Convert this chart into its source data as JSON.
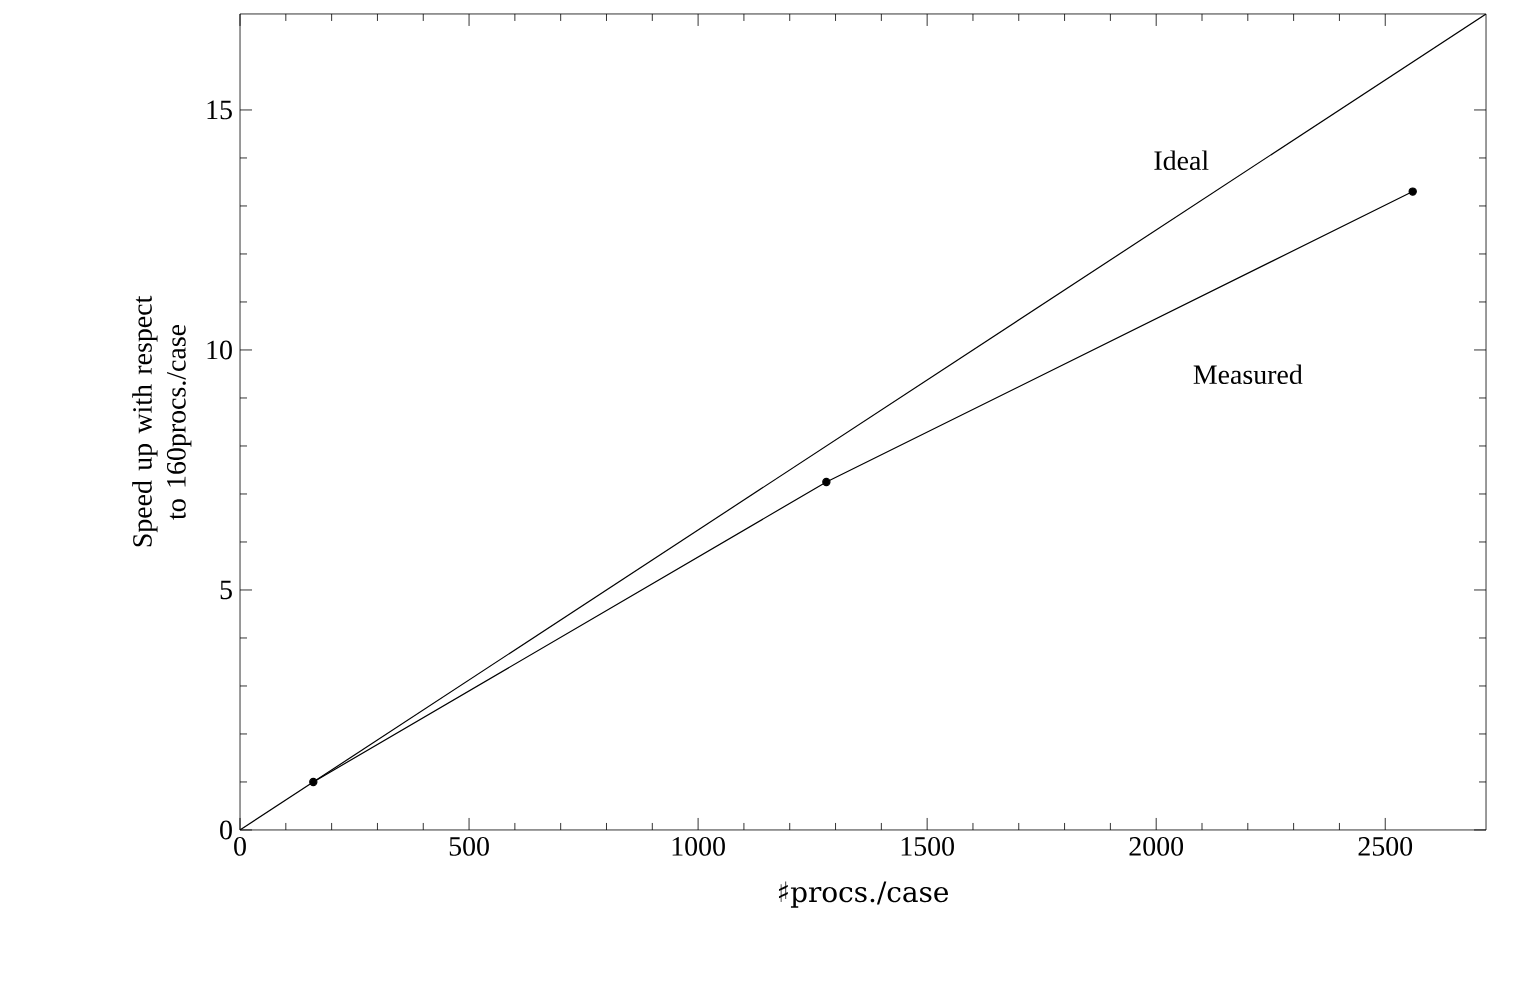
{
  "chart_data": {
    "type": "line",
    "xlabel": "♯procs./case",
    "ylabel": "Speed up with respect to 160procs./case",
    "xlim": [
      0,
      2720
    ],
    "ylim": [
      0,
      17
    ],
    "xticks": [
      0,
      500,
      1000,
      1500,
      2000,
      2500
    ],
    "yticks": [
      0,
      5,
      10,
      15
    ],
    "grid": false,
    "series": [
      {
        "name": "Ideal",
        "color": "#000000",
        "x": [
          0,
          2720
        ],
        "values": [
          0,
          17
        ],
        "marker": "none"
      },
      {
        "name": "Measured",
        "color": "#000000",
        "x": [
          160,
          1280,
          2560
        ],
        "values": [
          1,
          7.25,
          13.3
        ],
        "marker": "circle"
      }
    ]
  }
}
